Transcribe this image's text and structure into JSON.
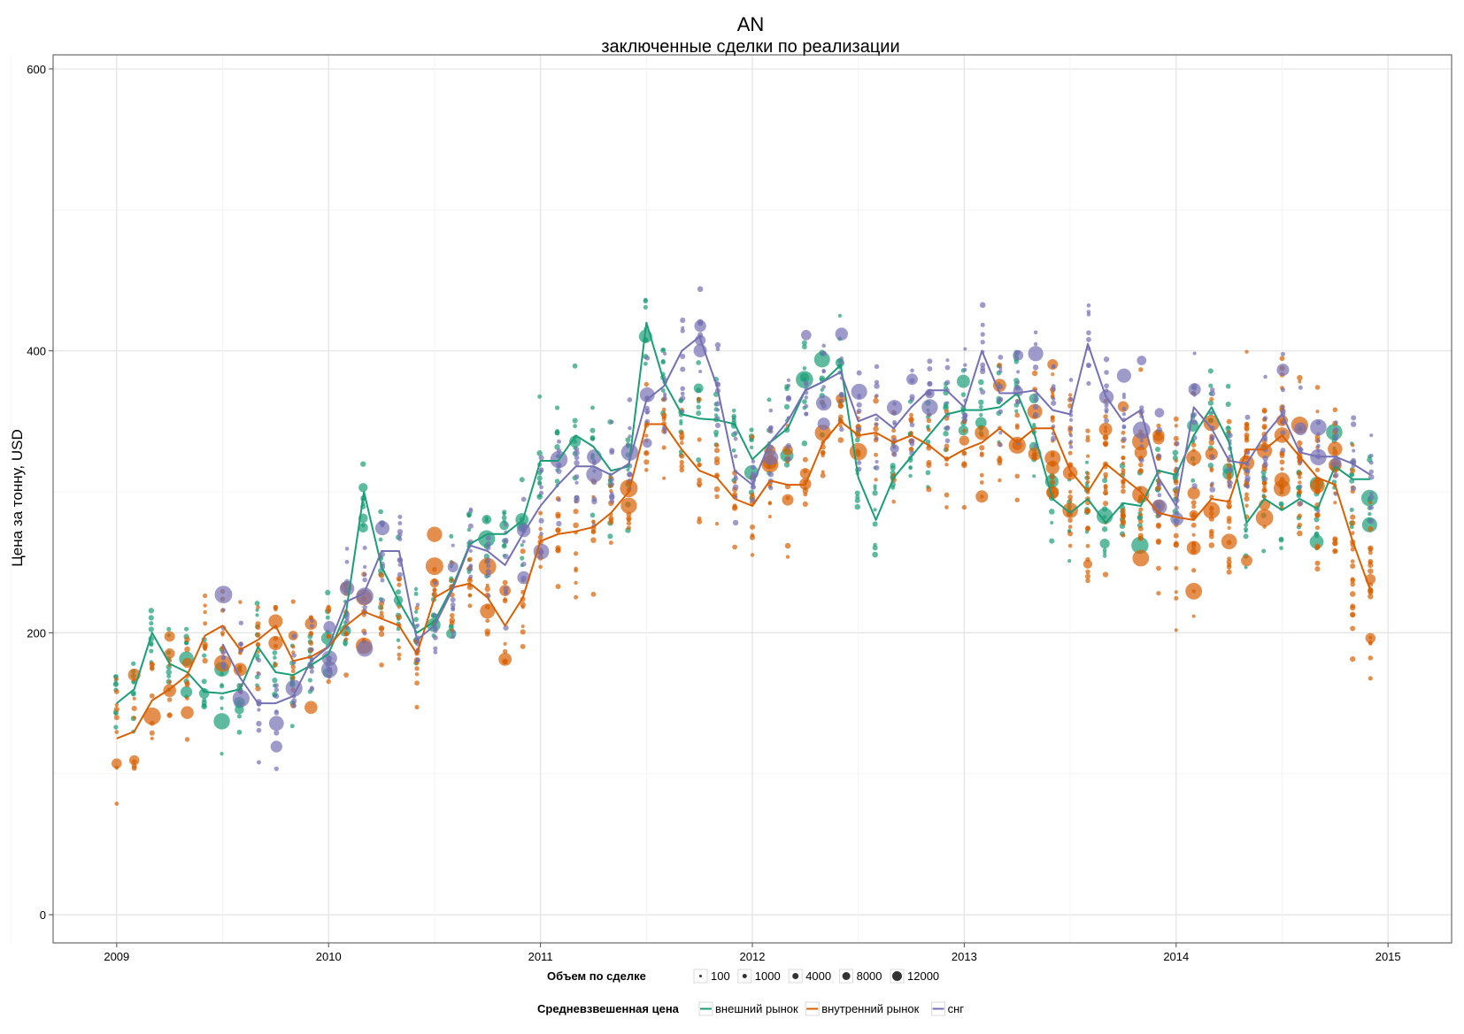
{
  "chart_data": {
    "type": "scatter",
    "title": "AN",
    "subtitle": "заключенные сделки по реализации",
    "xlabel": "",
    "ylabel": "Цена за тонну, USD",
    "xlim": [
      2008.7,
      2015.3
    ],
    "ylim": [
      -20,
      610
    ],
    "x_ticks": [
      2009,
      2010,
      2011,
      2012,
      2013,
      2014,
      2015
    ],
    "y_ticks": [
      0,
      200,
      400,
      600
    ],
    "grid": true,
    "colors": {
      "внешний рынок": "#1b9e77",
      "внутренний рынок": "#d95f02",
      "снг": "#7570b3"
    },
    "size_legend": {
      "title": "Объем по сделке",
      "values": [
        100,
        1000,
        4000,
        8000,
        12000
      ]
    },
    "line_legend": {
      "title": "Средневзвешенная цена",
      "entries": [
        "внешний рынок",
        "внутренний рынок",
        "снг"
      ]
    },
    "series": [
      {
        "name": "внешний рынок",
        "x": [
          2009.0,
          2009.083,
          2009.167,
          2009.25,
          2009.333,
          2009.417,
          2009.5,
          2009.583,
          2009.667,
          2009.75,
          2009.833,
          2009.917,
          2010.0,
          2010.083,
          2010.167,
          2010.25,
          2010.333,
          2010.417,
          2010.5,
          2010.583,
          2010.667,
          2010.75,
          2010.833,
          2010.917,
          2011.0,
          2011.083,
          2011.167,
          2011.25,
          2011.333,
          2011.417,
          2011.5,
          2011.583,
          2011.667,
          2011.75,
          2011.833,
          2011.917,
          2012.0,
          2012.083,
          2012.167,
          2012.25,
          2012.333,
          2012.417,
          2012.5,
          2012.583,
          2012.667,
          2012.75,
          2012.833,
          2012.917,
          2013.0,
          2013.083,
          2013.167,
          2013.25,
          2013.333,
          2013.417,
          2013.5,
          2013.583,
          2013.667,
          2013.75,
          2013.833,
          2013.917,
          2014.0,
          2014.083,
          2014.167,
          2014.25,
          2014.333,
          2014.417,
          2014.5,
          2014.583,
          2014.667,
          2014.75,
          2014.833,
          2014.917
        ],
        "values": [
          150,
          160,
          200,
          178,
          172,
          158,
          157,
          160,
          190,
          172,
          170,
          177,
          185,
          215,
          300,
          247,
          222,
          200,
          208,
          232,
          263,
          270,
          270,
          280,
          322,
          322,
          340,
          332,
          315,
          318,
          420,
          378,
          355,
          352,
          351,
          348,
          323,
          335,
          345,
          372,
          378,
          390,
          310,
          280,
          310,
          325,
          340,
          355,
          358,
          358,
          360,
          370,
          340,
          295,
          285,
          295,
          278,
          292,
          290,
          315,
          312,
          340,
          360,
          335,
          278,
          295,
          287,
          295,
          288,
          318,
          309,
          309
        ]
      },
      {
        "name": "внутренний рынок",
        "x": [
          2009.0,
          2009.083,
          2009.167,
          2009.25,
          2009.333,
          2009.417,
          2009.5,
          2009.583,
          2009.667,
          2009.75,
          2009.833,
          2009.917,
          2010.0,
          2010.083,
          2010.167,
          2010.25,
          2010.333,
          2010.417,
          2010.5,
          2010.583,
          2010.667,
          2010.75,
          2010.833,
          2010.917,
          2011.0,
          2011.083,
          2011.167,
          2011.25,
          2011.333,
          2011.417,
          2011.5,
          2011.583,
          2011.667,
          2011.75,
          2011.833,
          2011.917,
          2012.0,
          2012.083,
          2012.167,
          2012.25,
          2012.333,
          2012.417,
          2012.5,
          2012.583,
          2012.667,
          2012.75,
          2012.833,
          2012.917,
          2013.0,
          2013.083,
          2013.167,
          2013.25,
          2013.333,
          2013.417,
          2013.5,
          2013.583,
          2013.667,
          2013.75,
          2013.833,
          2013.917,
          2014.0,
          2014.083,
          2014.167,
          2014.25,
          2014.333,
          2014.417,
          2014.5,
          2014.583,
          2014.667,
          2014.75,
          2014.833,
          2014.917
        ],
        "values": [
          125,
          130,
          152,
          160,
          170,
          198,
          205,
          188,
          195,
          205,
          180,
          183,
          190,
          205,
          215,
          210,
          205,
          185,
          225,
          232,
          235,
          225,
          205,
          225,
          265,
          270,
          272,
          275,
          285,
          300,
          348,
          348,
          330,
          315,
          310,
          295,
          290,
          308,
          305,
          305,
          335,
          350,
          340,
          342,
          335,
          340,
          333,
          323,
          330,
          335,
          345,
          335,
          345,
          345,
          315,
          300,
          320,
          310,
          300,
          285,
          282,
          280,
          295,
          293,
          330,
          330,
          340,
          325,
          310,
          305,
          265,
          230
        ]
      },
      {
        "name": "снг",
        "x": [
          2009.5,
          2009.583,
          2009.667,
          2009.75,
          2009.833,
          2009.917,
          2010.0,
          2010.083,
          2010.167,
          2010.25,
          2010.333,
          2010.417,
          2010.5,
          2010.583,
          2010.667,
          2010.75,
          2010.833,
          2010.917,
          2011.0,
          2011.083,
          2011.167,
          2011.25,
          2011.333,
          2011.417,
          2011.5,
          2011.583,
          2011.667,
          2011.75,
          2011.833,
          2011.917,
          2012.0,
          2012.083,
          2012.167,
          2012.25,
          2012.333,
          2012.417,
          2012.5,
          2012.583,
          2012.667,
          2012.75,
          2012.833,
          2012.917,
          2013.0,
          2013.083,
          2013.167,
          2013.25,
          2013.333,
          2013.417,
          2013.5,
          2013.583,
          2013.667,
          2013.75,
          2013.833,
          2013.917,
          2014.0,
          2014.083,
          2014.167,
          2014.25,
          2014.333,
          2014.417,
          2014.5,
          2014.583,
          2014.667,
          2014.75,
          2014.833,
          2014.917
        ],
        "values": [
          192,
          168,
          150,
          150,
          155,
          180,
          190,
          222,
          228,
          258,
          258,
          195,
          205,
          230,
          262,
          258,
          248,
          270,
          290,
          305,
          318,
          318,
          312,
          320,
          365,
          375,
          400,
          410,
          375,
          315,
          305,
          335,
          350,
          372,
          378,
          385,
          350,
          355,
          345,
          360,
          372,
          372,
          360,
          400,
          370,
          370,
          372,
          358,
          355,
          405,
          368,
          350,
          358,
          310,
          290,
          360,
          345,
          322,
          320,
          340,
          355,
          328,
          325,
          325,
          320,
          312
        ]
      }
    ],
    "annotations": []
  }
}
